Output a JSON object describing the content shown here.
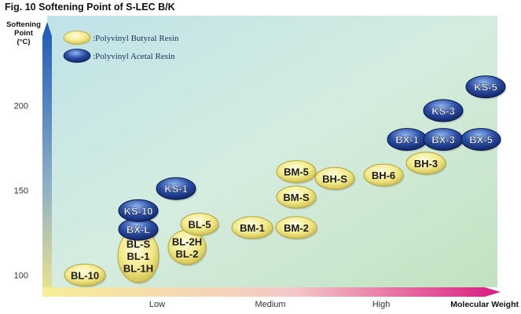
{
  "figure_title": "Fig. 10 Softening Point of S-LEC B/K",
  "chart_data": {
    "type": "scatter",
    "title": "",
    "ylabel": "Softening Point (°C)",
    "ylabel_lines": [
      "Softening",
      "Point",
      "(°C)"
    ],
    "xlabel": "Molecular Weight",
    "ylim": [
      90,
      222
    ],
    "yticks": [
      100,
      150,
      200
    ],
    "xticks": [
      "Low",
      "Medium",
      "High"
    ],
    "grid": false,
    "legend_position": "top-left",
    "colors": {
      "butyral": "#f3ea8a",
      "acetal": "#2b4fa6",
      "background": "#d5ecdf",
      "left_axis": "#1d58b8",
      "bottom_axis": "#d81b7e"
    },
    "series": [
      {
        "name": ":Polyvinyl Butyral Resin",
        "key": "butyral",
        "points": [
          {
            "label": [
              "BL-10"
            ],
            "x": "Very Low",
            "y": 100
          },
          {
            "label": [
              "BL-S",
              "BL-1",
              "BL-1H"
            ],
            "x": "Low",
            "y": 102
          },
          {
            "label": [
              "BL-2H",
              "BL-2"
            ],
            "x": "Low",
            "y": 108
          },
          {
            "label": [
              "BL-5"
            ],
            "x": "Low",
            "y": 130
          },
          {
            "label": [
              "BM-1"
            ],
            "x": "Medium",
            "y": 128
          },
          {
            "label": [
              "BM-2"
            ],
            "x": "Medium",
            "y": 128
          },
          {
            "label": [
              "BM-S"
            ],
            "x": "Medium",
            "y": 146
          },
          {
            "label": [
              "BM-5"
            ],
            "x": "Medium",
            "y": 161
          },
          {
            "label": [
              "BH-S"
            ],
            "x": "Medium-High",
            "y": 157
          },
          {
            "label": [
              "BH-6"
            ],
            "x": "High",
            "y": 159
          },
          {
            "label": [
              "BH-3"
            ],
            "x": "High",
            "y": 166
          }
        ]
      },
      {
        "name": ":Polyvinyl Acetal Resin",
        "key": "acetal",
        "points": [
          {
            "label": [
              "BX-L"
            ],
            "x": "Low",
            "y": 127
          },
          {
            "label": [
              "KS-10"
            ],
            "x": "Low",
            "y": 138
          },
          {
            "label": [
              "KS-1"
            ],
            "x": "Low",
            "y": 151
          },
          {
            "label": [
              "BX-1"
            ],
            "x": "High",
            "y": 180
          },
          {
            "label": [
              "BX-3"
            ],
            "x": "Very High",
            "y": 180
          },
          {
            "label": [
              "BX-5"
            ],
            "x": "Very High",
            "y": 180
          },
          {
            "label": [
              "KS-3"
            ],
            "x": "Very High",
            "y": 197
          },
          {
            "label": [
              "KS-5"
            ],
            "x": "Very High",
            "y": 211
          }
        ]
      }
    ]
  }
}
